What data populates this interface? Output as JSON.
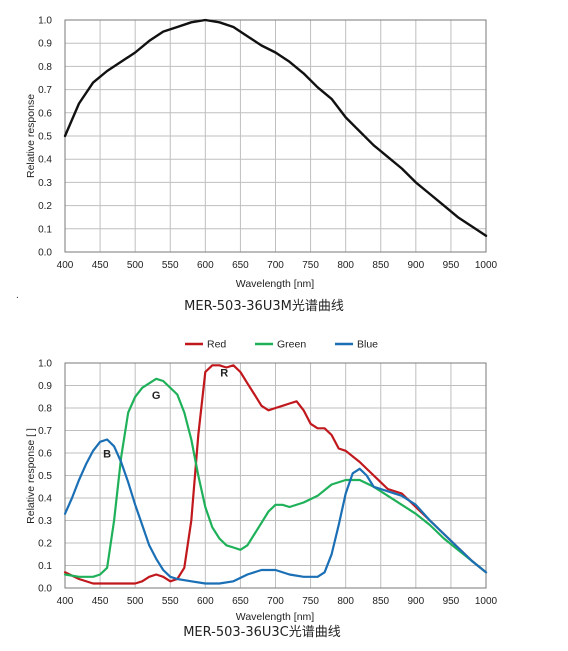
{
  "chart_data": [
    {
      "type": "line",
      "title": "",
      "xlabel": "Wavelength  [nm]",
      "ylabel": "Relative response",
      "xlim": [
        400,
        1000
      ],
      "ylim": [
        0,
        1.0
      ],
      "x_ticks": [
        "400",
        "450",
        "500",
        "550",
        "600",
        "650",
        "700",
        "750",
        "800",
        "850",
        "900",
        "950",
        "1000"
      ],
      "y_ticks": [
        "0.0",
        "0.1",
        "0.2",
        "0.3",
        "0.4",
        "0.5",
        "0.6",
        "0.7",
        "0.8",
        "0.9",
        "1.0"
      ],
      "grid": true,
      "series": [
        {
          "color": "#111111",
          "points": [
            [
              400,
              0.5
            ],
            [
              420,
              0.64
            ],
            [
              440,
              0.73
            ],
            [
              460,
              0.78
            ],
            [
              480,
              0.82
            ],
            [
              500,
              0.86
            ],
            [
              520,
              0.91
            ],
            [
              540,
              0.95
            ],
            [
              560,
              0.97
            ],
            [
              580,
              0.99
            ],
            [
              600,
              1.0
            ],
            [
              620,
              0.99
            ],
            [
              640,
              0.97
            ],
            [
              660,
              0.93
            ],
            [
              680,
              0.89
            ],
            [
              700,
              0.86
            ],
            [
              720,
              0.82
            ],
            [
              740,
              0.77
            ],
            [
              760,
              0.71
            ],
            [
              780,
              0.66
            ],
            [
              800,
              0.58
            ],
            [
              820,
              0.52
            ],
            [
              840,
              0.46
            ],
            [
              860,
              0.41
            ],
            [
              880,
              0.36
            ],
            [
              900,
              0.3
            ],
            [
              920,
              0.25
            ],
            [
              940,
              0.2
            ],
            [
              960,
              0.15
            ],
            [
              980,
              0.11
            ],
            [
              1000,
              0.07
            ]
          ]
        }
      ],
      "caption": "MER-503-36U3M光谱曲线"
    },
    {
      "type": "line",
      "title": "",
      "xlabel": "Wavelength [nm]",
      "ylabel": "Relative response [ ]",
      "xlim": [
        400,
        1000
      ],
      "ylim": [
        0,
        1.0
      ],
      "x_ticks": [
        "400",
        "450",
        "500",
        "550",
        "600",
        "650",
        "700",
        "750",
        "800",
        "850",
        "900",
        "950",
        "1000"
      ],
      "y_ticks": [
        "0.0",
        "0.1",
        "0.2",
        "0.3",
        "0.4",
        "0.5",
        "0.6",
        "0.7",
        "0.8",
        "0.9",
        "1.0"
      ],
      "grid": true,
      "legend_position": "top-center",
      "series": [
        {
          "name": "Red",
          "label": "R",
          "color": "#c0181c",
          "points": [
            [
              400,
              0.07
            ],
            [
              420,
              0.04
            ],
            [
              440,
              0.02
            ],
            [
              460,
              0.02
            ],
            [
              480,
              0.02
            ],
            [
              500,
              0.02
            ],
            [
              510,
              0.03
            ],
            [
              520,
              0.05
            ],
            [
              530,
              0.06
            ],
            [
              540,
              0.05
            ],
            [
              550,
              0.03
            ],
            [
              560,
              0.04
            ],
            [
              570,
              0.09
            ],
            [
              580,
              0.3
            ],
            [
              590,
              0.68
            ],
            [
              600,
              0.96
            ],
            [
              610,
              0.99
            ],
            [
              620,
              0.99
            ],
            [
              630,
              0.98
            ],
            [
              640,
              0.99
            ],
            [
              650,
              0.96
            ],
            [
              660,
              0.91
            ],
            [
              670,
              0.86
            ],
            [
              680,
              0.81
            ],
            [
              690,
              0.79
            ],
            [
              700,
              0.8
            ],
            [
              710,
              0.81
            ],
            [
              720,
              0.82
            ],
            [
              730,
              0.83
            ],
            [
              740,
              0.79
            ],
            [
              750,
              0.73
            ],
            [
              760,
              0.71
            ],
            [
              770,
              0.71
            ],
            [
              780,
              0.68
            ],
            [
              790,
              0.62
            ],
            [
              800,
              0.61
            ],
            [
              820,
              0.56
            ],
            [
              840,
              0.5
            ],
            [
              860,
              0.44
            ],
            [
              880,
              0.42
            ],
            [
              900,
              0.36
            ],
            [
              920,
              0.3
            ],
            [
              940,
              0.24
            ],
            [
              960,
              0.18
            ],
            [
              980,
              0.12
            ],
            [
              1000,
              0.07
            ]
          ]
        },
        {
          "name": "Green",
          "label": "G",
          "color": "#1fb15a",
          "points": [
            [
              400,
              0.06
            ],
            [
              420,
              0.05
            ],
            [
              440,
              0.05
            ],
            [
              450,
              0.06
            ],
            [
              460,
              0.09
            ],
            [
              470,
              0.3
            ],
            [
              480,
              0.58
            ],
            [
              490,
              0.78
            ],
            [
              500,
              0.85
            ],
            [
              510,
              0.89
            ],
            [
              520,
              0.91
            ],
            [
              530,
              0.93
            ],
            [
              540,
              0.92
            ],
            [
              560,
              0.86
            ],
            [
              570,
              0.78
            ],
            [
              580,
              0.66
            ],
            [
              590,
              0.5
            ],
            [
              600,
              0.36
            ],
            [
              610,
              0.27
            ],
            [
              620,
              0.22
            ],
            [
              630,
              0.19
            ],
            [
              640,
              0.18
            ],
            [
              650,
              0.17
            ],
            [
              660,
              0.19
            ],
            [
              670,
              0.24
            ],
            [
              680,
              0.29
            ],
            [
              690,
              0.34
            ],
            [
              700,
              0.37
            ],
            [
              710,
              0.37
            ],
            [
              720,
              0.36
            ],
            [
              740,
              0.38
            ],
            [
              760,
              0.41
            ],
            [
              780,
              0.46
            ],
            [
              800,
              0.48
            ],
            [
              820,
              0.48
            ],
            [
              840,
              0.45
            ],
            [
              860,
              0.41
            ],
            [
              880,
              0.37
            ],
            [
              900,
              0.33
            ],
            [
              920,
              0.28
            ],
            [
              940,
              0.22
            ],
            [
              960,
              0.17
            ],
            [
              980,
              0.12
            ],
            [
              1000,
              0.07
            ]
          ]
        },
        {
          "name": "Blue",
          "label": "B",
          "color": "#1a6fb5",
          "points": [
            [
              400,
              0.33
            ],
            [
              410,
              0.4
            ],
            [
              420,
              0.48
            ],
            [
              430,
              0.55
            ],
            [
              440,
              0.61
            ],
            [
              450,
              0.65
            ],
            [
              460,
              0.66
            ],
            [
              470,
              0.63
            ],
            [
              480,
              0.56
            ],
            [
              490,
              0.47
            ],
            [
              500,
              0.37
            ],
            [
              510,
              0.28
            ],
            [
              520,
              0.19
            ],
            [
              530,
              0.13
            ],
            [
              540,
              0.08
            ],
            [
              550,
              0.05
            ],
            [
              560,
              0.04
            ],
            [
              580,
              0.03
            ],
            [
              600,
              0.02
            ],
            [
              620,
              0.02
            ],
            [
              640,
              0.03
            ],
            [
              660,
              0.06
            ],
            [
              680,
              0.08
            ],
            [
              700,
              0.08
            ],
            [
              720,
              0.06
            ],
            [
              740,
              0.05
            ],
            [
              760,
              0.05
            ],
            [
              770,
              0.07
            ],
            [
              780,
              0.15
            ],
            [
              790,
              0.28
            ],
            [
              800,
              0.42
            ],
            [
              810,
              0.51
            ],
            [
              820,
              0.53
            ],
            [
              830,
              0.5
            ],
            [
              840,
              0.45
            ],
            [
              860,
              0.43
            ],
            [
              880,
              0.41
            ],
            [
              900,
              0.37
            ],
            [
              920,
              0.3
            ],
            [
              940,
              0.24
            ],
            [
              960,
              0.18
            ],
            [
              980,
              0.12
            ],
            [
              1000,
              0.07
            ]
          ]
        }
      ],
      "peak_labels": [
        {
          "series": "Blue",
          "text": "B",
          "x": 460,
          "y": 0.58
        },
        {
          "series": "Green",
          "text": "G",
          "x": 530,
          "y": 0.84
        },
        {
          "series": "Red",
          "text": "R",
          "x": 627,
          "y": 0.94
        }
      ],
      "caption": "MER-503-36U3C光谱曲线"
    }
  ],
  "page": {
    "dot": "."
  }
}
